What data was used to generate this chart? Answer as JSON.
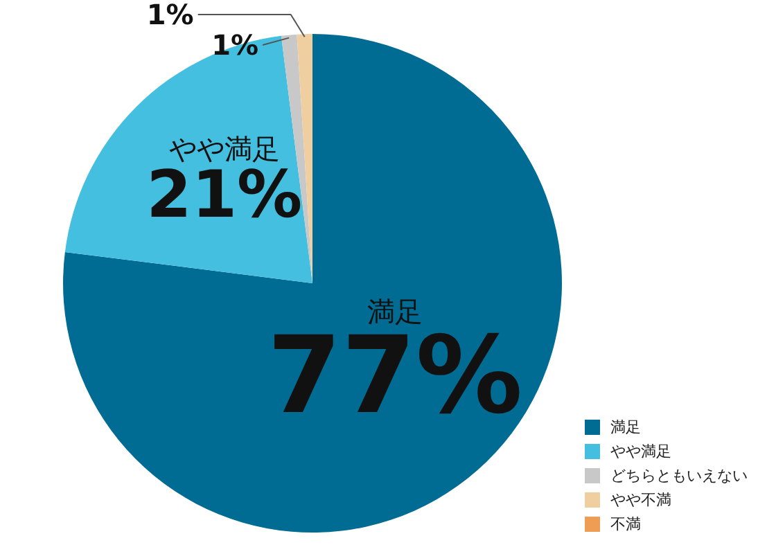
{
  "chart_data": {
    "type": "pie",
    "categories": [
      "満足",
      "やや満足",
      "どちらともいえない",
      "やや不満",
      "不満"
    ],
    "values": [
      77,
      21,
      1,
      1,
      0
    ],
    "colors": [
      "#006c93",
      "#45bfe0",
      "#c8c8c8",
      "#efcf9f",
      "#ee9d55"
    ],
    "value_labels": [
      "77%",
      "21%",
      "1%",
      "1%",
      null
    ],
    "annotations": [
      {
        "text": "満足",
        "x": "満足"
      },
      {
        "text": "やや満足",
        "x": "やや満足"
      }
    ],
    "legend": "bottom right"
  }
}
